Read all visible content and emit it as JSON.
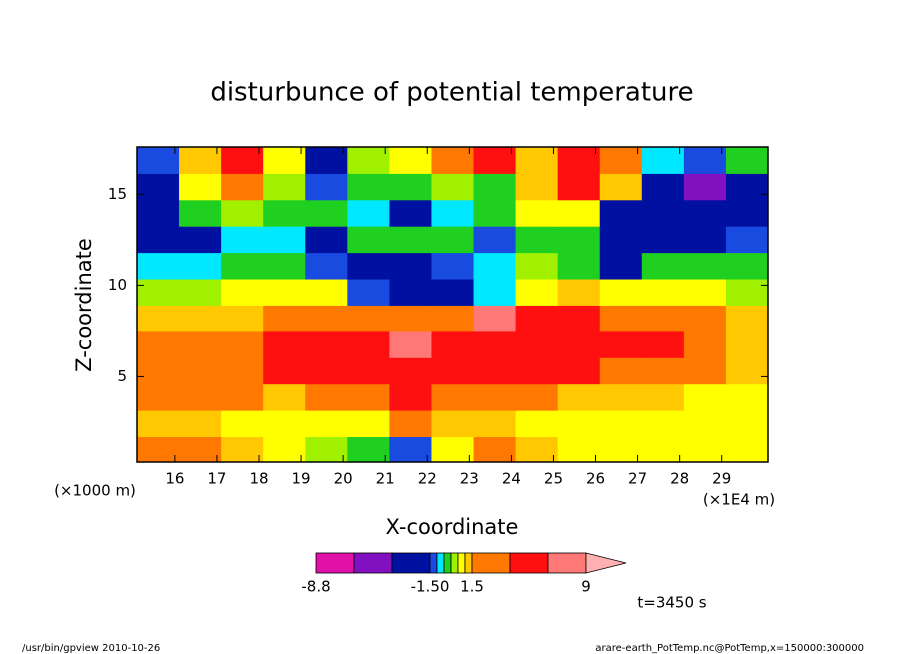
{
  "chart_data": {
    "type": "contour",
    "title": "disturbunce of potential temperature",
    "xlabel": "X-coordinate",
    "ylabel": "Z-coordinate",
    "x_unit": "(×1E4 m)",
    "y_unit": "(×1000 m)",
    "xlim": [
      15.1,
      30.1
    ],
    "ylim": [
      0.3,
      17.6
    ],
    "xticks": [
      16,
      17,
      18,
      19,
      20,
      21,
      22,
      23,
      24,
      25,
      26,
      27,
      28,
      29
    ],
    "yticks": [
      5,
      10,
      15
    ],
    "x": [
      15.6,
      16.6,
      17.6,
      18.6,
      19.6,
      20.6,
      21.6,
      22.6,
      23.6,
      24.6,
      25.6,
      26.6,
      27.6,
      28.6,
      29.6
    ],
    "z": [
      1.0,
      2.4,
      3.9,
      5.3,
      6.8,
      8.2,
      9.6,
      11.1,
      12.5,
      14.0,
      15.4,
      16.9
    ],
    "values": [
      [
        1.6,
        1.6,
        1.2,
        0.8,
        0.3,
        -0.5,
        -1.2,
        0.8,
        1.6,
        1.2,
        0.8,
        0.6,
        0.6,
        0.6,
        0.6
      ],
      [
        1.2,
        1.0,
        0.8,
        0.7,
        0.5,
        0.8,
        1.8,
        1.4,
        1.0,
        0.8,
        0.7,
        0.6,
        0.6,
        0.6,
        0.6
      ],
      [
        2.0,
        1.8,
        1.6,
        1.4,
        1.6,
        2.2,
        3.2,
        2.5,
        2.0,
        1.6,
        1.4,
        1.2,
        1.0,
        0.9,
        0.9
      ],
      [
        2.0,
        2.2,
        2.4,
        3.2,
        3.5,
        3.6,
        4.2,
        3.5,
        3.4,
        3.2,
        3.0,
        2.6,
        2.2,
        1.6,
        1.2
      ],
      [
        1.6,
        1.8,
        2.4,
        3.2,
        3.4,
        3.6,
        6.5,
        3.6,
        3.6,
        3.4,
        3.4,
        3.4,
        3.2,
        2.2,
        1.4
      ],
      [
        1.0,
        1.2,
        1.4,
        1.6,
        1.8,
        1.9,
        2.2,
        2.4,
        6.2,
        3.0,
        3.0,
        2.6,
        2.0,
        1.6,
        1.2
      ],
      [
        0.3,
        0.4,
        0.6,
        0.8,
        0.5,
        -1.2,
        -2,
        -1.8,
        -0.6,
        0.8,
        1.0,
        0.9,
        0.8,
        0.6,
        0.4
      ],
      [
        -0.6,
        -1.0,
        -0.4,
        -0.3,
        -1.4,
        -1.6,
        -1.6,
        -1.2,
        -0.6,
        0.4,
        -0.4,
        -1.6,
        -0.5,
        -0.2,
        -0.2
      ],
      [
        -1.6,
        -1.8,
        -0.9,
        -0.8,
        -1.6,
        -0.5,
        -0.4,
        -0.4,
        -1.4,
        -0.3,
        -0.4,
        -1.6,
        -1.8,
        -1.7,
        -1.2
      ],
      [
        -2.0,
        -0.2,
        0.4,
        -0.3,
        -0.5,
        -0.8,
        -1.6,
        -0.8,
        -0.3,
        0.5,
        0.5,
        -1.7,
        -2.2,
        -2.4,
        -1.8
      ],
      [
        -1.8,
        0.6,
        2.2,
        0.3,
        -1.4,
        -0.3,
        -0.5,
        0.4,
        -0.5,
        1.0,
        3.5,
        1.2,
        -1.8,
        -3.2,
        -2.4
      ],
      [
        -1.4,
        1.0,
        3.2,
        0.6,
        -1.6,
        0.2,
        0.6,
        1.5,
        3.4,
        1.0,
        3.2,
        1.6,
        -0.8,
        -1.2,
        -0.4
      ]
    ],
    "levels": [
      -8.8,
      -6,
      -3,
      -1.5,
      -1,
      -0.5,
      0,
      0.5,
      1,
      1.5,
      3,
      6,
      9
    ],
    "colors": [
      "#e010a8",
      "#8010c0",
      "#0010a0",
      "#1a4be0",
      "#00e8ff",
      "#20d020",
      "#a0f000",
      "#ffff00",
      "#ffc800",
      "#ff7800",
      "#ff1010",
      "#ff7878",
      "#ffb0b0"
    ],
    "colorbar_ticks": [
      -8.8,
      {
        "value": -1.5,
        "label": "-1.50"
      },
      1.5,
      9
    ],
    "annotation": "t=3450 s"
  },
  "footer": {
    "left": "/usr/bin/gpview  2010-10-26",
    "right": "arare-earth_PotTemp.nc@PotTemp,x=150000:300000"
  }
}
